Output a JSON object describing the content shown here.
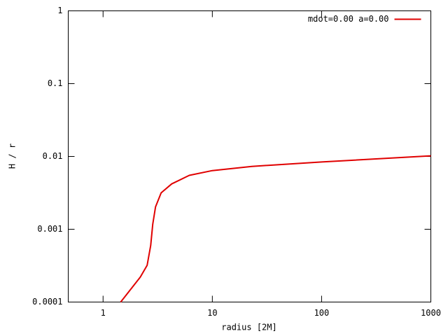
{
  "chart_data": {
    "type": "line",
    "xlabel": "radius [2M]",
    "ylabel": "H / r",
    "xscale": "log",
    "yscale": "log",
    "xlim": [
      0.48,
      1000
    ],
    "ylim": [
      0.0001,
      1
    ],
    "xticks": [
      1,
      10,
      100,
      1000
    ],
    "yticks": [
      0.0001,
      0.001,
      0.01,
      0.1,
      1
    ],
    "legend": "top-right",
    "series": [
      {
        "name": "mdot=0.00 a=0.00",
        "color": "#e00000",
        "x": [
          1.45,
          2.19,
          2.53,
          2.73,
          2.85,
          3.02,
          3.4,
          4.25,
          6.15,
          10,
          23,
          100,
          1000
        ],
        "values": [
          0.0001,
          0.00022,
          0.00032,
          0.0006,
          0.00117,
          0.00203,
          0.00316,
          0.0042,
          0.0055,
          0.0064,
          0.0073,
          0.0084,
          0.0102
        ]
      }
    ]
  }
}
